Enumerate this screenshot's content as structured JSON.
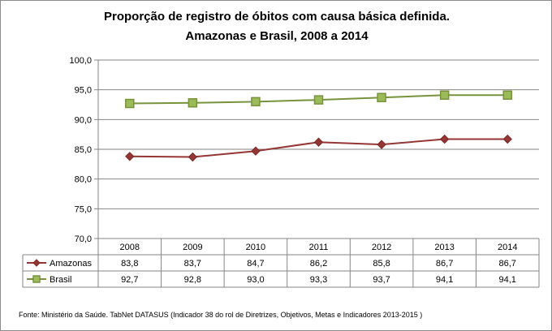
{
  "chart_data": {
    "type": "line",
    "title": [
      "Proporção de registro de óbitos com causa básica definida.",
      "Amazonas e Brasil, 2008 a 2014"
    ],
    "categories": [
      "2008",
      "2009",
      "2010",
      "2011",
      "2012",
      "2013",
      "2014"
    ],
    "series": [
      {
        "name": "Amazonas",
        "values": [
          83.8,
          83.7,
          84.7,
          86.2,
          85.8,
          86.7,
          86.7
        ],
        "labels": [
          "83,8",
          "83,7",
          "84,7",
          "86,2",
          "85,8",
          "86,7",
          "86,7"
        ],
        "color": "#943634",
        "marker": "diamond"
      },
      {
        "name": "Brasil",
        "values": [
          92.7,
          92.8,
          93.0,
          93.3,
          93.7,
          94.1,
          94.1
        ],
        "labels": [
          "92,7",
          "92,8",
          "93,0",
          "93,3",
          "93,7",
          "94,1",
          "94,1"
        ],
        "color": "#77933c",
        "marker": "square"
      }
    ],
    "ylim": [
      70,
      100
    ],
    "yticks": [
      "70,0",
      "75,0",
      "80,0",
      "85,0",
      "90,0",
      "95,0",
      "100,0"
    ],
    "grid": true,
    "legend": "data-table"
  },
  "source": "Fonte: Ministério da Saúde. TabNet DATASUS (Indicador 38 do rol de Diretrizes, Objetivos, Metas e Indicadores 2013-2015 )"
}
